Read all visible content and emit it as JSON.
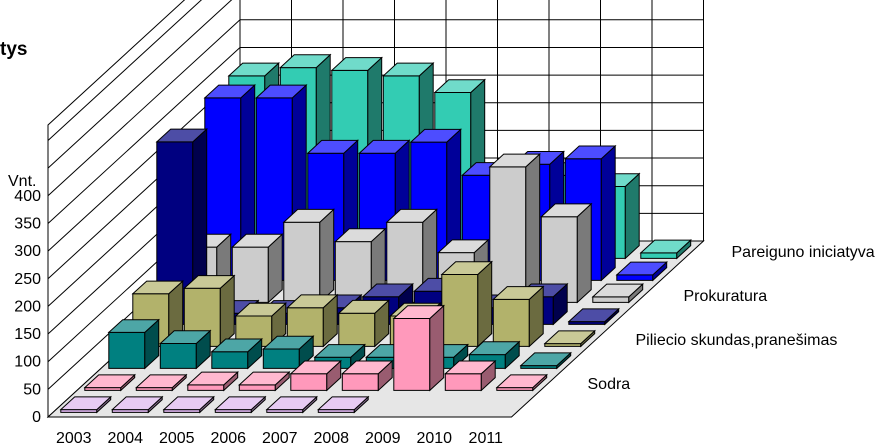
{
  "chart_data": {
    "type": "bar",
    "title_fragment": "tys",
    "ylabel": "Vnt.",
    "ylim": [
      0,
      400
    ],
    "yticks": [
      "0",
      "50",
      "100",
      "150",
      "200",
      "250",
      "300",
      "350",
      "400"
    ],
    "categories": [
      "2003",
      "2004",
      "2005",
      "2006",
      "2007",
      "2008",
      "2009",
      "2010",
      "2011"
    ],
    "series_labels": [
      "Pareiguno iniciatyva",
      "Prokuratura",
      "Piliecio skundas,pranešimas",
      "Sodra"
    ],
    "series": [
      {
        "color": "#ddb4ee",
        "values": [
          5,
          5,
          5,
          5,
          5,
          5,
          0,
          0,
          0
        ]
      },
      {
        "color": "#ff99bb",
        "values": [
          5,
          5,
          10,
          10,
          30,
          30,
          130,
          30,
          5
        ]
      },
      {
        "color": "#008080",
        "values": [
          65,
          45,
          30,
          35,
          20,
          20,
          20,
          25,
          5
        ]
      },
      {
        "color": "#b2b26b",
        "values": [
          95,
          105,
          55,
          70,
          60,
          55,
          130,
          85,
          5
        ]
      },
      {
        "color": "#000080",
        "values": [
          330,
          20,
          20,
          30,
          50,
          60,
          30,
          50,
          5
        ]
      },
      {
        "color": "#cccccc",
        "values": [
          100,
          100,
          145,
          110,
          145,
          90,
          245,
          155,
          10
        ]
      },
      {
        "color": "#0000ff",
        "values": [
          330,
          330,
          230,
          230,
          250,
          190,
          210,
          220,
          10
        ]
      },
      {
        "color": "#33ccb3",
        "values": [
          330,
          345,
          340,
          330,
          300,
          150,
          150,
          130,
          10
        ]
      }
    ]
  }
}
